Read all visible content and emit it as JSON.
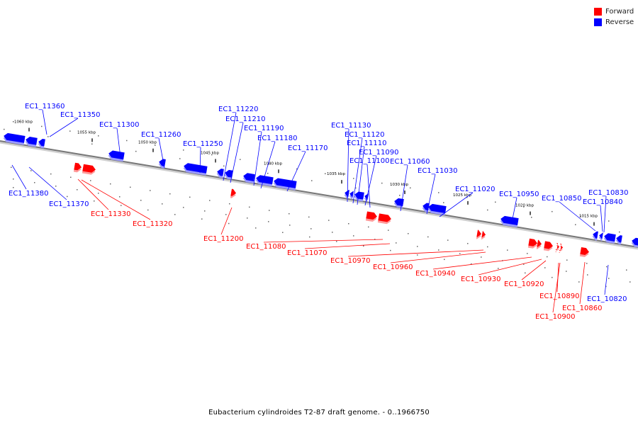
{
  "colors": {
    "forward": "#ff0000",
    "reverse": "#0000ff",
    "axis": "#777777"
  },
  "legend": [
    {
      "label": "Forward",
      "color": "#ff0000"
    },
    {
      "label": "Reverse",
      "color": "#0000ff"
    }
  ],
  "caption": "Eubacterium cylindroides T2-87 draft genome. - 0..1966750",
  "axis": {
    "ticks": [
      "1060 kbp",
      "1055 kbp",
      "1050 kbp",
      "1045 kbp",
      "1040 kbp",
      "1035 kbp",
      "1030 kbp",
      "1025 kbp",
      "1020 kbp",
      "1015 kbp"
    ]
  },
  "genes": {
    "reverse": [
      "EC1_11360",
      "EC1_11350",
      "EC1_11300",
      "EC1_11260",
      "EC1_11250",
      "EC1_11220",
      "EC1_11210",
      "EC1_11190",
      "EC1_11180",
      "EC1_11170",
      "EC1_11130",
      "EC1_11120",
      "EC1_11110",
      "EC1_11090",
      "EC1_11100",
      "EC1_11060",
      "EC1_11030",
      "EC1_11020",
      "EC1_10950",
      "EC1_10850",
      "EC1_10830",
      "EC1_10840",
      "EC1_11380",
      "EC1_11370",
      "EC1_10820"
    ],
    "forward": [
      "EC1_11330",
      "EC1_11320",
      "EC1_11200",
      "EC1_11080",
      "EC1_11070",
      "EC1_10970",
      "EC1_10960",
      "EC1_10940",
      "EC1_10930",
      "EC1_10920",
      "EC1_10890",
      "EC1_10900",
      "EC1_10860"
    ]
  }
}
